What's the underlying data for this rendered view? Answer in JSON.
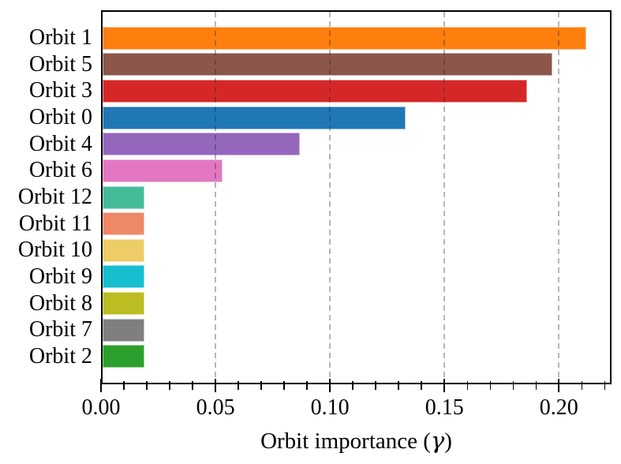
{
  "figure": {
    "background": "#ffffff",
    "frame_color": "#000000",
    "text_color": "#000000",
    "grid_color_rgba": "rgba(40,40,40,0.34)"
  },
  "chart_data": {
    "type": "bar",
    "orientation": "horizontal",
    "title": "",
    "xlabel": "Orbit importance (γ)",
    "xlabel_prefix": "Orbit importance (",
    "xlabel_symbol": "γ",
    "xlabel_suffix": ")",
    "categories": [
      "Orbit 1",
      "Orbit 5",
      "Orbit 3",
      "Orbit 0",
      "Orbit 4",
      "Orbit 6",
      "Orbit 12",
      "Orbit 11",
      "Orbit 10",
      "Orbit 9",
      "Orbit 8",
      "Orbit 7",
      "Orbit 2"
    ],
    "values": [
      0.212,
      0.197,
      0.186,
      0.133,
      0.087,
      0.053,
      0.019,
      0.019,
      0.019,
      0.019,
      0.019,
      0.019,
      0.019
    ],
    "bar_colors": [
      "#ff7f0e",
      "#8c564b",
      "#d62728",
      "#1f77b4",
      "#9467bd",
      "#e377c2",
      "#44bb99",
      "#ee8866",
      "#eecc66",
      "#17becf",
      "#bcbd22",
      "#7f7f7f",
      "#2ca02c"
    ],
    "xlim": [
      0,
      0.223
    ],
    "x_major_ticks": [
      0,
      0.05,
      0.1,
      0.15,
      0.2
    ],
    "x_tick_labels": [
      "0.00",
      "0.05",
      "0.10",
      "0.15",
      "0.20"
    ],
    "x_minor_tick_step": 0.01,
    "grid": {
      "axis": "x",
      "style": "dashed",
      "above_bars": true
    },
    "legend": "none"
  }
}
